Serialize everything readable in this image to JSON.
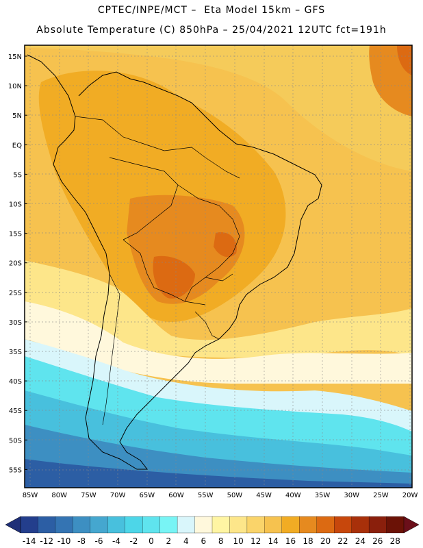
{
  "header": {
    "title_line1": "CPTEC/INPE/MCT –  Eta Model 15km – GFS",
    "title_line2": "Absolute Temperature (C) 850hPa – 25/04/2021 12UTC fct=191h"
  },
  "axes": {
    "lat_labels": [
      "15N",
      "10N",
      "5N",
      "EQ",
      "5S",
      "10S",
      "15S",
      "20S",
      "25S",
      "30S",
      "35S",
      "40S",
      "45S",
      "50S",
      "55S"
    ],
    "lon_labels": [
      "85W",
      "80W",
      "75W",
      "70W",
      "65W",
      "60W",
      "55W",
      "50W",
      "45W",
      "40W",
      "35W",
      "30W",
      "25W",
      "20W"
    ]
  },
  "colorbar": {
    "labels": [
      "-14",
      "-12",
      "-10",
      "-8",
      "-6",
      "-4",
      "-2",
      "0",
      "2",
      "4",
      "6",
      "8",
      "10",
      "12",
      "14",
      "16",
      "18",
      "20",
      "22",
      "24",
      "26",
      "28"
    ],
    "colors": [
      "#233e8c",
      "#2c5ea4",
      "#3474b3",
      "#3d8fc2",
      "#45a7cf",
      "#48c0dd",
      "#4dd6e8",
      "#5fe4ee",
      "#78f4f5",
      "#d9f6fb",
      "#fff8dc",
      "#fff5a3",
      "#fde68a",
      "#fad46a",
      "#f6c24f",
      "#f1ac24",
      "#e68a1f",
      "#dc6a12",
      "#c7470c",
      "#a8300a",
      "#8a1f0c",
      "#6b1206"
    ]
  },
  "map": {
    "description_labels": []
  }
}
